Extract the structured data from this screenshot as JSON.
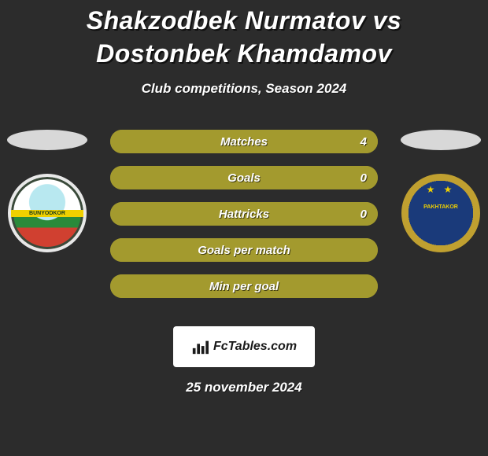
{
  "header": {
    "title": "Shakzodbek Nurmatov vs Dostonbek Khamdamov",
    "subtitle": "Club competitions, Season 2024"
  },
  "players": {
    "left": {
      "ellipse_color": "#d8d8d8",
      "club": "Bunyodkor"
    },
    "right": {
      "ellipse_color": "#d8d8d8",
      "club": "Pakhtakor"
    }
  },
  "stats": {
    "bar_bg_color": "#2c2c2c",
    "bar_border_color": "#a39a2e",
    "bar_fill_color": "#a39a2e",
    "rows": [
      {
        "label": "Matches",
        "left": "",
        "right": "4",
        "left_pct": 0,
        "right_pct": 100
      },
      {
        "label": "Goals",
        "left": "",
        "right": "0",
        "left_pct": 0,
        "right_pct": 100
      },
      {
        "label": "Hattricks",
        "left": "",
        "right": "0",
        "left_pct": 0,
        "right_pct": 100
      },
      {
        "label": "Goals per match",
        "left": "",
        "right": "",
        "left_pct": 0,
        "right_pct": 100
      },
      {
        "label": "Min per goal",
        "left": "",
        "right": "",
        "left_pct": 0,
        "right_pct": 100
      }
    ]
  },
  "footer": {
    "brand": "FcTables.com",
    "date": "25 november 2024"
  },
  "style": {
    "bg_color": "#2c2c2c",
    "text_color": "#ffffff"
  }
}
